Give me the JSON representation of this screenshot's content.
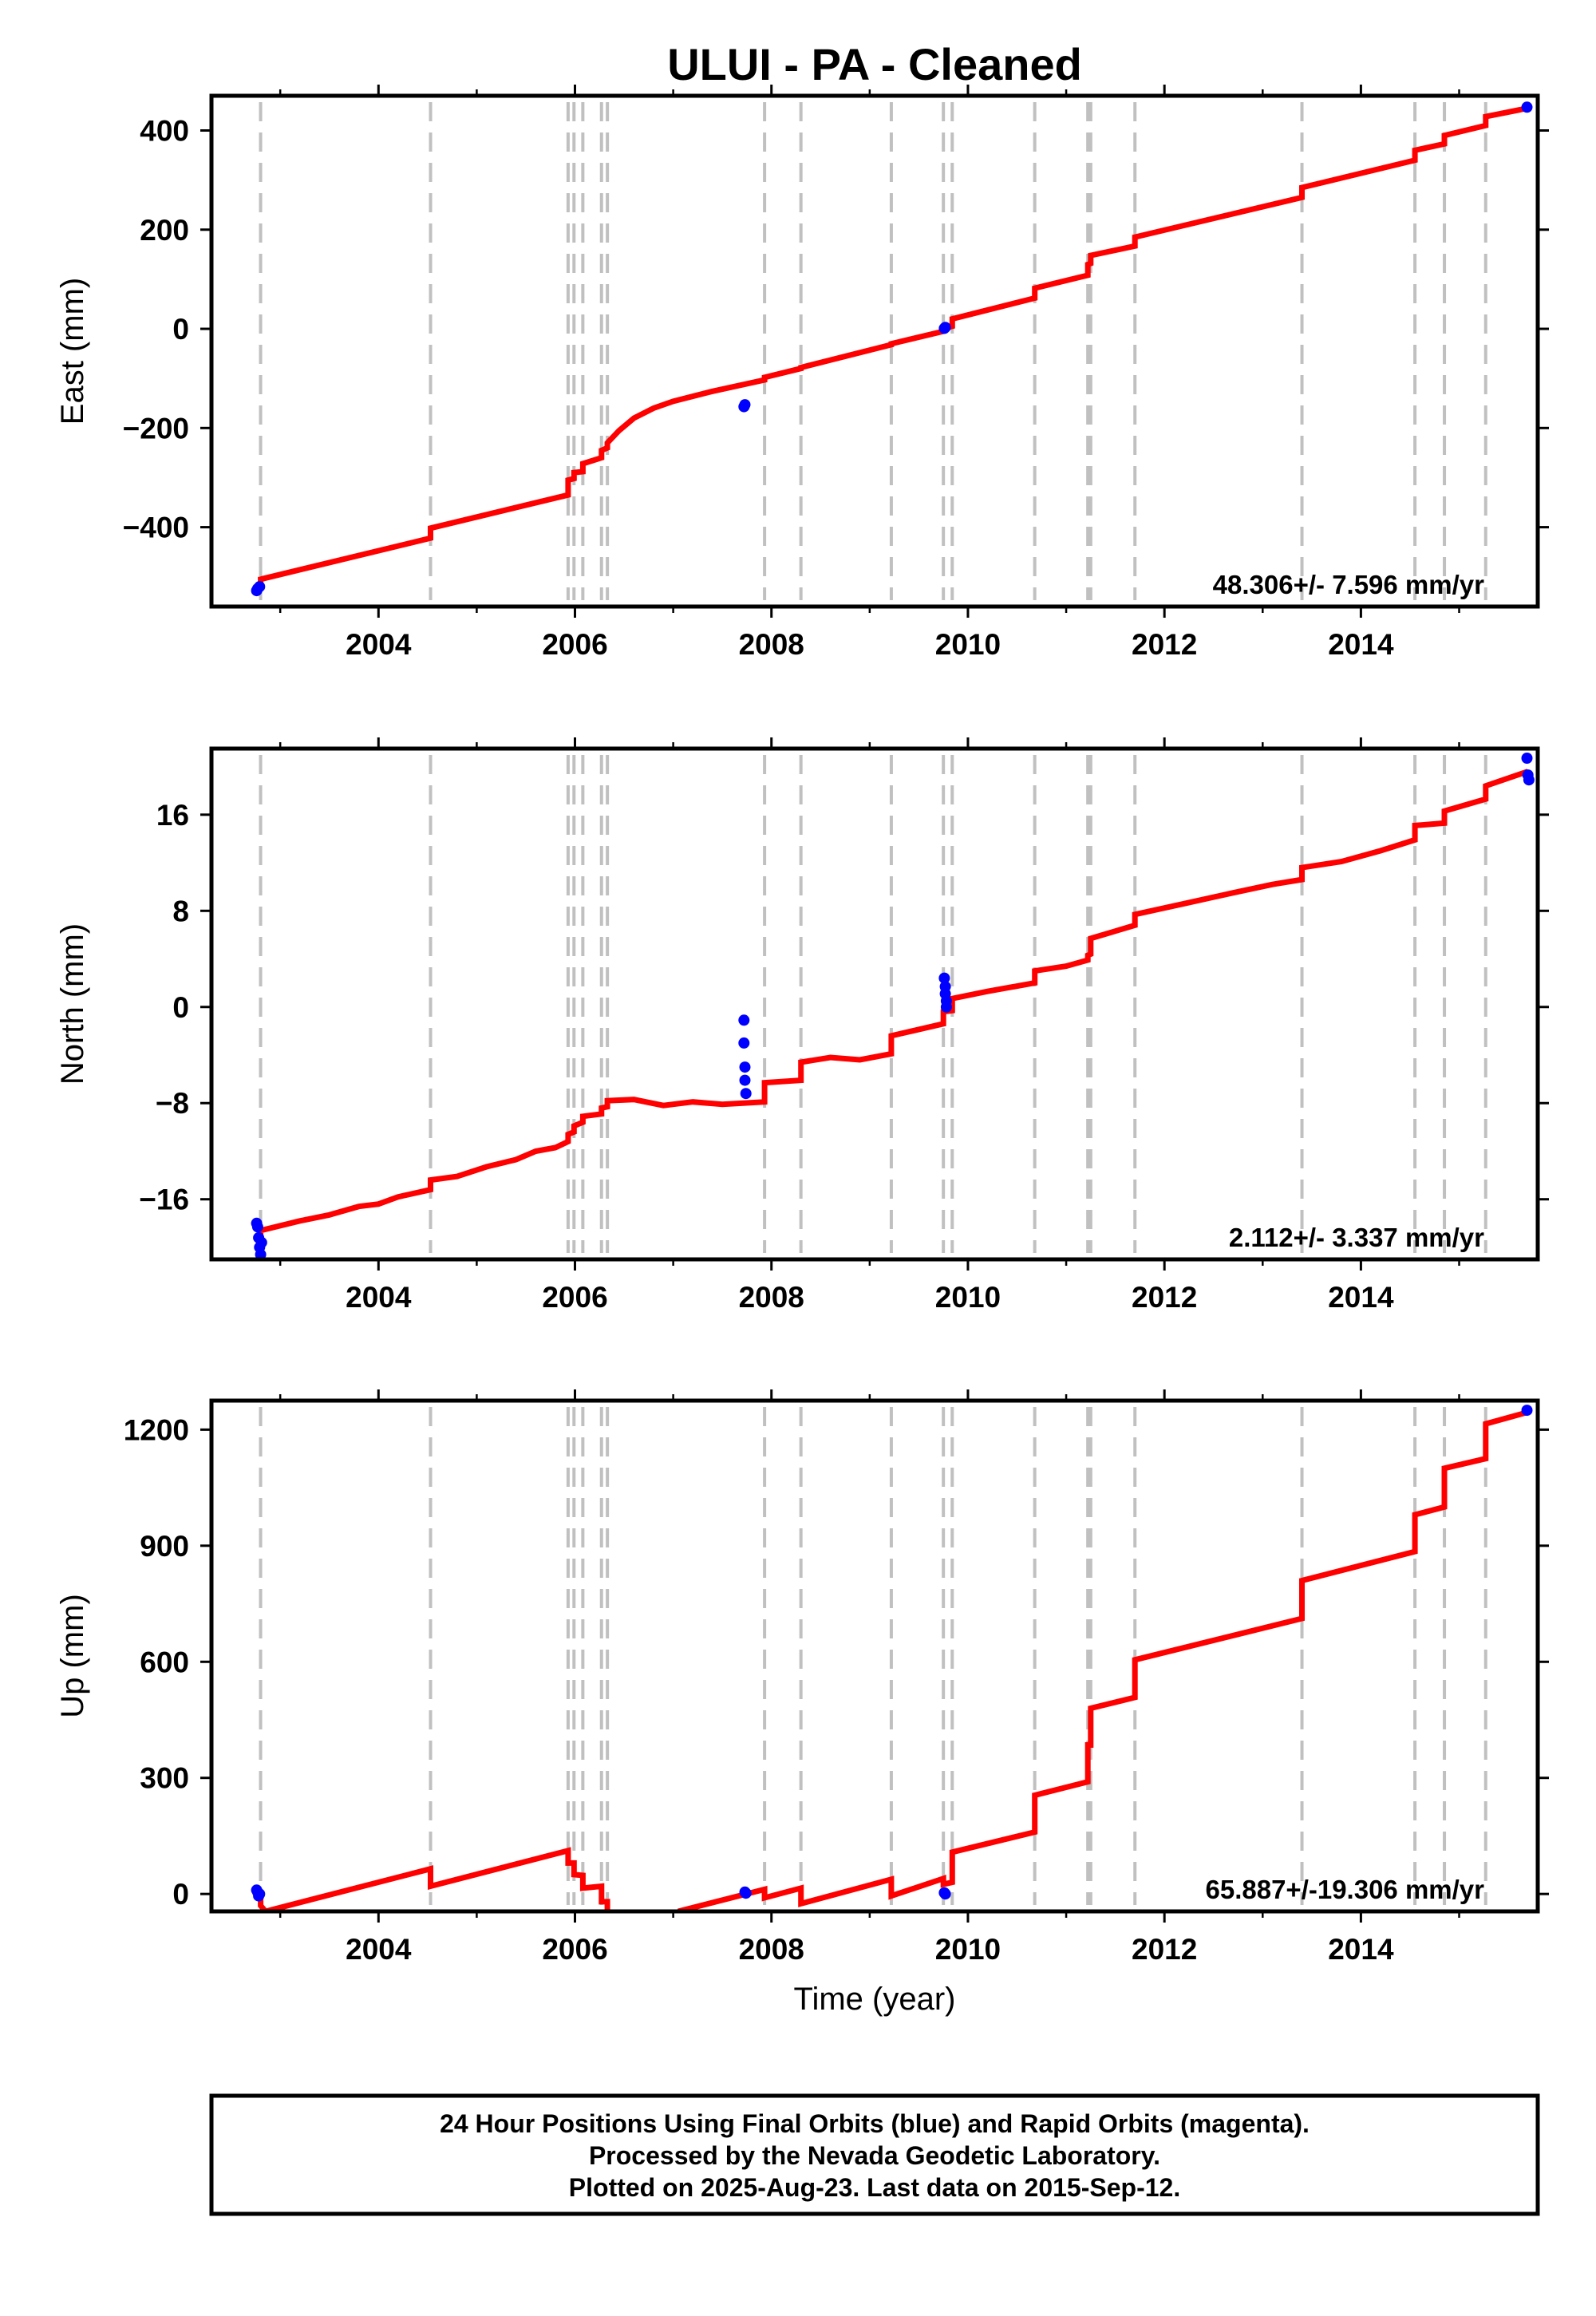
{
  "chart_data": {
    "type": "line",
    "title": "ULUI  - PA - Cleaned",
    "xlabel": "Time (year)",
    "xlim": [
      2002.3,
      2015.8
    ],
    "x_ticks": [
      2004,
      2006,
      2008,
      2010,
      2012,
      2014
    ],
    "x_tick_labels": [
      "2004",
      "2006",
      "2008",
      "2010",
      "2012",
      "2014"
    ],
    "grid": false,
    "colors": {
      "model": "#ff0000",
      "final_orbits": "#0000ff",
      "offsets": "#c0c0c0"
    },
    "step_epochs": [
      2002.8,
      2004.53,
      2005.93,
      2005.99,
      2006.08,
      2006.27,
      2006.33,
      2007.93,
      2008.3,
      2009.22,
      2009.75,
      2009.84,
      2010.68,
      2011.22,
      2011.25,
      2011.7,
      2013.4,
      2014.55,
      2014.85,
      2015.27
    ],
    "panels": [
      {
        "ylabel": "East (mm)",
        "ylim": [
          -560,
          470
        ],
        "y_ticks": [
          -400,
          -200,
          0,
          200,
          400
        ],
        "y_tick_labels": [
          "−400",
          "−200",
          "0",
          "200",
          "400"
        ],
        "rate_text": "48.306+/- 7.596 mm/yr",
        "model_line": [
          [
            2002.8,
            -520
          ],
          [
            2002.8,
            -505
          ],
          [
            2004.53,
            -422
          ],
          [
            2004.53,
            -402
          ],
          [
            2005.93,
            -335
          ],
          [
            2005.93,
            -305
          ],
          [
            2005.99,
            -302
          ],
          [
            2005.99,
            -290
          ],
          [
            2006.08,
            -288
          ],
          [
            2006.08,
            -272
          ],
          [
            2006.27,
            -260
          ],
          [
            2006.27,
            -245
          ],
          [
            2006.33,
            -240
          ],
          [
            2006.33,
            -230
          ],
          [
            2006.45,
            -205
          ],
          [
            2006.6,
            -180
          ],
          [
            2006.8,
            -160
          ],
          [
            2007.0,
            -146
          ],
          [
            2007.4,
            -126
          ],
          [
            2007.93,
            -103
          ],
          [
            2007.93,
            -98
          ],
          [
            2008.3,
            -80
          ],
          [
            2008.3,
            -78
          ],
          [
            2009.22,
            -32
          ],
          [
            2009.22,
            -30
          ],
          [
            2009.75,
            -5
          ],
          [
            2009.75,
            0
          ],
          [
            2009.84,
            5
          ],
          [
            2009.84,
            20
          ],
          [
            2010.68,
            62
          ],
          [
            2010.68,
            82
          ],
          [
            2011.22,
            108
          ],
          [
            2011.22,
            130
          ],
          [
            2011.25,
            132
          ],
          [
            2011.25,
            148
          ],
          [
            2011.7,
            167
          ],
          [
            2011.7,
            185
          ],
          [
            2013.4,
            265
          ],
          [
            2013.4,
            285
          ],
          [
            2014.55,
            340
          ],
          [
            2014.55,
            360
          ],
          [
            2014.85,
            373
          ],
          [
            2014.85,
            390
          ],
          [
            2015.27,
            410
          ],
          [
            2015.27,
            428
          ],
          [
            2015.7,
            445
          ]
        ],
        "final_orbit_points": [
          [
            2002.76,
            -528
          ],
          [
            2002.77,
            -524
          ],
          [
            2002.79,
            -520
          ],
          [
            2007.72,
            -157
          ],
          [
            2007.73,
            -153
          ],
          [
            2009.76,
            1
          ],
          [
            2009.77,
            3
          ],
          [
            2015.69,
            447
          ]
        ]
      },
      {
        "ylabel": "North (mm)",
        "ylim": [
          -21,
          21.5
        ],
        "y_ticks": [
          -16,
          -8,
          0,
          8,
          16
        ],
        "y_tick_labels": [
          "−16",
          "−8",
          "0",
          "8",
          "16"
        ],
        "rate_text": "2.112+/- 3.337 mm/yr",
        "model_line": [
          [
            2002.8,
            -19.5
          ],
          [
            2002.8,
            -18.6
          ],
          [
            2003.2,
            -17.8
          ],
          [
            2003.5,
            -17.3
          ],
          [
            2003.8,
            -16.6
          ],
          [
            2004.0,
            -16.4
          ],
          [
            2004.2,
            -15.8
          ],
          [
            2004.53,
            -15.2
          ],
          [
            2004.53,
            -14.4
          ],
          [
            2004.8,
            -14.1
          ],
          [
            2005.1,
            -13.3
          ],
          [
            2005.4,
            -12.7
          ],
          [
            2005.6,
            -12.0
          ],
          [
            2005.8,
            -11.7
          ],
          [
            2005.93,
            -11.2
          ],
          [
            2005.93,
            -10.6
          ],
          [
            2005.99,
            -10.4
          ],
          [
            2005.99,
            -9.9
          ],
          [
            2006.08,
            -9.6
          ],
          [
            2006.08,
            -9.1
          ],
          [
            2006.27,
            -8.9
          ],
          [
            2006.27,
            -8.4
          ],
          [
            2006.33,
            -8.3
          ],
          [
            2006.33,
            -7.8
          ],
          [
            2006.6,
            -7.7
          ],
          [
            2006.9,
            -8.2
          ],
          [
            2007.2,
            -7.9
          ],
          [
            2007.5,
            -8.1
          ],
          [
            2007.93,
            -7.9
          ],
          [
            2007.93,
            -6.3
          ],
          [
            2008.3,
            -6.1
          ],
          [
            2008.3,
            -4.6
          ],
          [
            2008.6,
            -4.2
          ],
          [
            2008.9,
            -4.4
          ],
          [
            2009.22,
            -3.9
          ],
          [
            2009.22,
            -2.4
          ],
          [
            2009.75,
            -1.4
          ],
          [
            2009.75,
            -0.4
          ],
          [
            2009.84,
            -0.3
          ],
          [
            2009.84,
            0.7
          ],
          [
            2010.2,
            1.3
          ],
          [
            2010.68,
            2.0
          ],
          [
            2010.68,
            3.0
          ],
          [
            2011.0,
            3.4
          ],
          [
            2011.22,
            3.9
          ],
          [
            2011.22,
            4.3
          ],
          [
            2011.25,
            4.4
          ],
          [
            2011.25,
            5.7
          ],
          [
            2011.7,
            6.8
          ],
          [
            2011.7,
            7.7
          ],
          [
            2012.2,
            8.6
          ],
          [
            2012.7,
            9.5
          ],
          [
            2013.1,
            10.2
          ],
          [
            2013.4,
            10.6
          ],
          [
            2013.4,
            11.6
          ],
          [
            2013.8,
            12.1
          ],
          [
            2014.2,
            13.0
          ],
          [
            2014.55,
            13.9
          ],
          [
            2014.55,
            15.1
          ],
          [
            2014.85,
            15.3
          ],
          [
            2014.85,
            16.3
          ],
          [
            2015.27,
            17.3
          ],
          [
            2015.27,
            18.4
          ],
          [
            2015.7,
            19.6
          ]
        ],
        "final_orbit_points": [
          [
            2002.76,
            -18.0
          ],
          [
            2002.77,
            -18.3
          ],
          [
            2002.78,
            -19.2
          ],
          [
            2002.79,
            -20.0
          ],
          [
            2002.8,
            -20.6
          ],
          [
            2002.81,
            -19.6
          ],
          [
            2007.72,
            -1.1
          ],
          [
            2007.72,
            -3.0
          ],
          [
            2007.73,
            -5.0
          ],
          [
            2007.73,
            -6.1
          ],
          [
            2007.74,
            -7.2
          ],
          [
            2009.76,
            2.4
          ],
          [
            2009.77,
            1.7
          ],
          [
            2009.77,
            1.1
          ],
          [
            2009.78,
            0.5
          ],
          [
            2009.78,
            0.0
          ],
          [
            2015.69,
            20.7
          ],
          [
            2015.7,
            19.3
          ],
          [
            2015.71,
            18.9
          ]
        ]
      },
      {
        "ylabel": "Up (mm)",
        "ylim": [
          -45,
          1275
        ],
        "y_ticks": [
          0,
          300,
          600,
          900,
          1200
        ],
        "y_tick_labels": [
          "0",
          "300",
          "600",
          "900",
          "1200"
        ],
        "rate_text": "65.887+/-19.306 mm/yr",
        "model_line": [
          [
            2002.8,
            -5
          ],
          [
            2002.8,
            -30
          ],
          [
            2002.85,
            -45
          ],
          [
            2004.53,
            65
          ],
          [
            2004.53,
            20
          ],
          [
            2005.93,
            112
          ],
          [
            2005.93,
            80
          ],
          [
            2005.99,
            80
          ],
          [
            2005.99,
            50
          ],
          [
            2006.08,
            48
          ],
          [
            2006.08,
            15
          ],
          [
            2006.27,
            20
          ],
          [
            2006.27,
            -20
          ],
          [
            2006.33,
            -20
          ],
          [
            2006.33,
            -45
          ],
          null,
          [
            2007.05,
            -45
          ],
          [
            2007.93,
            12
          ],
          [
            2007.93,
            -10
          ],
          [
            2008.3,
            15
          ],
          [
            2008.3,
            -25
          ],
          [
            2009.22,
            38
          ],
          [
            2009.22,
            -5
          ],
          [
            2009.75,
            40
          ],
          [
            2009.75,
            25
          ],
          [
            2009.84,
            30
          ],
          [
            2009.84,
            108
          ],
          [
            2010.68,
            160
          ],
          [
            2010.68,
            255
          ],
          [
            2011.22,
            290
          ],
          [
            2011.22,
            385
          ],
          [
            2011.25,
            385
          ],
          [
            2011.25,
            480
          ],
          [
            2011.7,
            508
          ],
          [
            2011.7,
            605
          ],
          [
            2013.4,
            712
          ],
          [
            2013.4,
            810
          ],
          [
            2014.55,
            885
          ],
          [
            2014.55,
            980
          ],
          [
            2014.85,
            1000
          ],
          [
            2014.85,
            1100
          ],
          [
            2015.27,
            1125
          ],
          [
            2015.27,
            1215
          ],
          [
            2015.7,
            1245
          ]
        ],
        "final_orbit_points": [
          [
            2002.76,
            10
          ],
          [
            2002.77,
            5
          ],
          [
            2002.78,
            -5
          ],
          [
            2002.79,
            0
          ],
          [
            2007.73,
            5
          ],
          [
            2007.74,
            2
          ],
          [
            2009.76,
            3
          ],
          [
            2009.77,
            0
          ],
          [
            2015.69,
            1250
          ]
        ]
      }
    ]
  },
  "footer": {
    "line1": "24 Hour Positions Using Final Orbits (blue) and Rapid Orbits (magenta).",
    "line2": "Processed by the Nevada Geodetic Laboratory.",
    "line3": "Plotted on 2025-Aug-23. Last data on 2015-Sep-12."
  }
}
